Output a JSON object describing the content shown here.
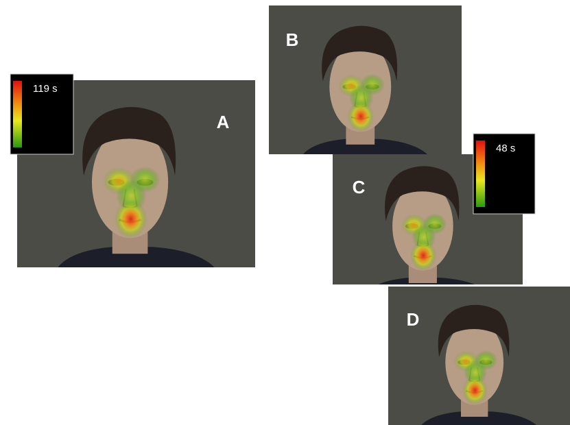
{
  "panels": [
    {
      "label": "A"
    },
    {
      "label": "B"
    },
    {
      "label": "C"
    },
    {
      "label": "D"
    }
  ],
  "colorbars": [
    {
      "label": "119 s"
    },
    {
      "label": "48 s"
    }
  ]
}
